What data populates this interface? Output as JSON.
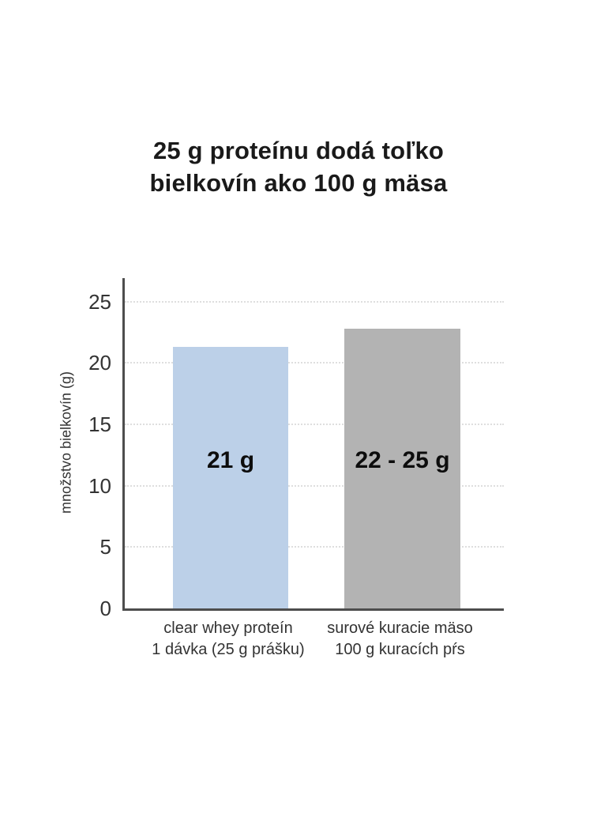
{
  "title": {
    "text": "25 g proteínu dodá toľko\nbielkovín ako 100 g mäsa"
  },
  "chart_data": {
    "type": "bar",
    "title": "25 g proteínu dodá toľko bielkovín ako 100 g mäsa",
    "xlabel": "",
    "ylabel": "množstvo bielkovín (g)",
    "yticks": [
      0,
      5,
      10,
      15,
      20,
      25
    ],
    "ylim": [
      0,
      26.9
    ],
    "grid": "horizontal-dotted",
    "legend": "none",
    "bars": [
      {
        "category_line1": "clear whey proteín",
        "category_line2": "1 dávka (25 g prášku)",
        "value_label": "21 g",
        "protein_g": 21,
        "bar_height_g": 21.3,
        "color": "#bcd0e8"
      },
      {
        "category_line1": "surové kuracie mäso",
        "category_line2": "100 g kuracích pŕs",
        "value_label": "22 - 25 g",
        "protein_g_min": 22,
        "protein_g_max": 25,
        "bar_height_g": 22.8,
        "color": "#b3b3b3"
      }
    ],
    "colors": {
      "axis": "#4d4d4d",
      "grid": "#dedede",
      "tick_text": "#333333",
      "title_text": "#1a1a1a",
      "value_label_text": "#0d0d0d"
    }
  }
}
